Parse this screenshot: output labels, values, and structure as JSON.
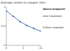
{
  "chart_data": {
    "type": "line",
    "title": "Average carbon-to-oxygen ratio",
    "x": [
      0,
      2,
      4,
      6,
      8,
      10
    ],
    "series": [
      {
        "name": "Above midpoint",
        "color": "#1f4e9c",
        "marker": "circle",
        "values": [
          0.9,
          0.76,
          0.62,
          0.52,
          0.44,
          0.37
        ]
      }
    ],
    "xlim": [
      0,
      10
    ],
    "xticks": [
      0,
      5,
      10
    ],
    "ylim": [
      0,
      1
    ],
    "yticks": [
      0,
      0.5,
      1
    ],
    "annotations": [
      "After treatment",
      "Carbon resealed"
    ],
    "grid": false
  }
}
